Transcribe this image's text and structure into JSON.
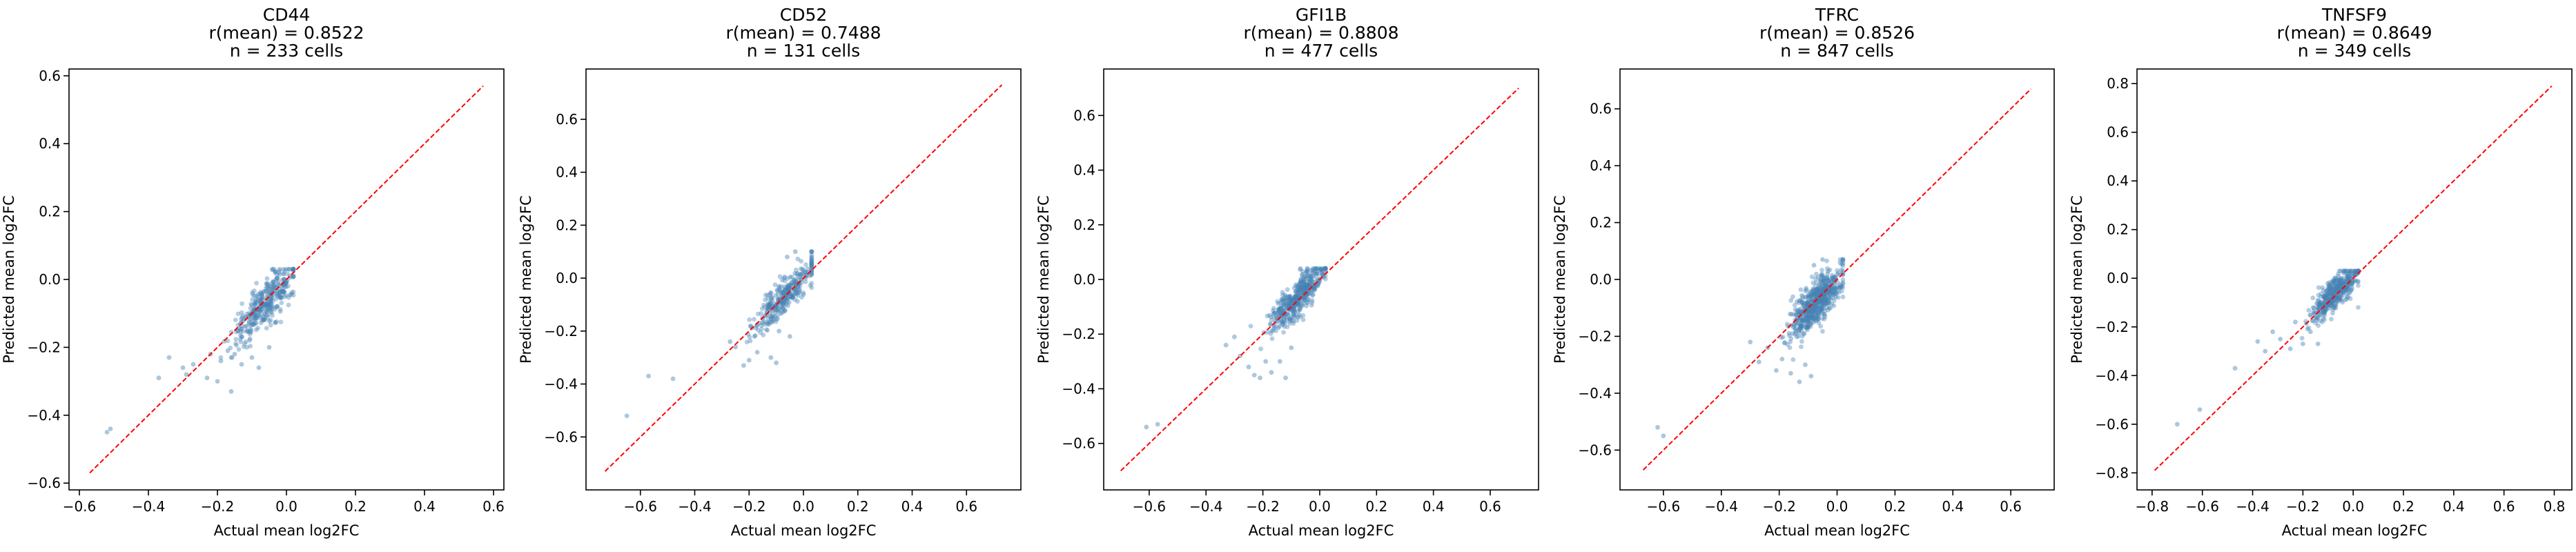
{
  "chart_data": [
    {
      "type": "scatter",
      "title_lines": [
        "CD44",
        "r(mean) = 0.8522",
        "n = 233 cells"
      ],
      "xlabel": "Actual mean log2FC",
      "ylabel": "Predicted mean log2FC",
      "xlim": [
        -0.63,
        0.63
      ],
      "ylim": [
        -0.62,
        0.62
      ],
      "xticks": [
        -0.6,
        -0.4,
        -0.2,
        0.0,
        0.2,
        0.4,
        0.6
      ],
      "xtick_labels": [
        "−0.6",
        "−0.4",
        "−0.2",
        "0.0",
        "0.2",
        "0.4",
        "0.6"
      ],
      "yticks": [
        -0.6,
        -0.4,
        -0.2,
        0.0,
        0.2,
        0.4,
        0.6
      ],
      "ytick_labels": [
        "−0.6",
        "−0.4",
        "−0.2",
        "0.0",
        "0.2",
        "0.4",
        "0.6"
      ],
      "diagonal": [
        -0.57,
        0.57
      ],
      "cloud": {
        "center": [
          -0.06,
          -0.07
        ],
        "spread": [
          0.05,
          0.045
        ],
        "xmin": -0.25,
        "xmax": 0.02,
        "ymin": -0.23,
        "ymax": 0.03
      },
      "outliers": [
        [
          -0.52,
          -0.45
        ],
        [
          -0.51,
          -0.44
        ],
        [
          -0.37,
          -0.29
        ],
        [
          -0.34,
          -0.23
        ],
        [
          -0.3,
          -0.26
        ],
        [
          -0.29,
          -0.28
        ],
        [
          -0.27,
          -0.25
        ],
        [
          -0.23,
          -0.29
        ],
        [
          -0.22,
          -0.22
        ],
        [
          -0.2,
          -0.3
        ],
        [
          -0.19,
          -0.24
        ],
        [
          -0.17,
          -0.21
        ],
        [
          -0.16,
          -0.33
        ],
        [
          -0.15,
          -0.22
        ],
        [
          -0.13,
          -0.25
        ],
        [
          -0.1,
          -0.23
        ],
        [
          -0.08,
          -0.26
        ],
        [
          -0.05,
          -0.2
        ]
      ]
    },
    {
      "type": "scatter",
      "title_lines": [
        "CD52",
        "r(mean) = 0.7488",
        "n = 131 cells"
      ],
      "xlabel": "Actual mean log2FC",
      "ylabel": "Predicted mean log2FC",
      "xlim": [
        -0.8,
        0.8
      ],
      "ylim": [
        -0.8,
        0.79
      ],
      "xticks": [
        -0.6,
        -0.4,
        -0.2,
        0.0,
        0.2,
        0.4,
        0.6
      ],
      "xtick_labels": [
        "−0.6",
        "−0.4",
        "−0.2",
        "0.0",
        "0.2",
        "0.4",
        "0.6"
      ],
      "yticks": [
        -0.6,
        -0.4,
        -0.2,
        0.0,
        0.2,
        0.4,
        0.6
      ],
      "ytick_labels": [
        "−0.6",
        "−0.4",
        "−0.2",
        "0.0",
        "0.2",
        "0.4",
        "0.6"
      ],
      "diagonal": [
        -0.73,
        0.73
      ],
      "cloud": {
        "center": [
          -0.06,
          -0.06
        ],
        "spread": [
          0.06,
          0.05
        ],
        "xmin": -0.27,
        "xmax": 0.03,
        "ymin": -0.33,
        "ymax": 0.1
      },
      "outliers": [
        [
          -0.65,
          -0.52
        ],
        [
          -0.57,
          -0.37
        ],
        [
          -0.48,
          -0.38
        ],
        [
          -0.27,
          -0.24
        ],
        [
          -0.25,
          -0.26
        ],
        [
          -0.22,
          -0.33
        ],
        [
          -0.2,
          -0.31
        ],
        [
          -0.18,
          -0.22
        ],
        [
          -0.17,
          -0.28
        ],
        [
          -0.12,
          -0.3
        ],
        [
          -0.1,
          -0.32
        ],
        [
          -0.09,
          -0.2
        ],
        [
          -0.05,
          -0.22
        ],
        [
          -0.03,
          0.1
        ],
        [
          -0.06,
          0.08
        ]
      ]
    },
    {
      "type": "scatter",
      "title_lines": [
        "GFI1B",
        "r(mean) = 0.8808",
        "n = 477 cells"
      ],
      "xlabel": "Actual mean log2FC",
      "ylabel": "Predicted mean log2FC",
      "xlim": [
        -0.76,
        0.77
      ],
      "ylim": [
        -0.77,
        0.77
      ],
      "xticks": [
        -0.6,
        -0.4,
        -0.2,
        0.0,
        0.2,
        0.4,
        0.6
      ],
      "xtick_labels": [
        "−0.6",
        "−0.4",
        "−0.2",
        "0.0",
        "0.2",
        "0.4",
        "0.6"
      ],
      "yticks": [
        -0.6,
        -0.4,
        -0.2,
        0.0,
        0.2,
        0.4,
        0.6
      ],
      "ytick_labels": [
        "−0.6",
        "−0.4",
        "−0.2",
        "0.0",
        "0.2",
        "0.4",
        "0.6"
      ],
      "diagonal": [
        -0.7,
        0.7
      ],
      "cloud": {
        "center": [
          -0.08,
          -0.07
        ],
        "spread": [
          0.05,
          0.05
        ],
        "xmin": -0.25,
        "xmax": 0.02,
        "ymin": -0.28,
        "ymax": 0.04
      },
      "outliers": [
        [
          -0.61,
          -0.54
        ],
        [
          -0.57,
          -0.53
        ],
        [
          -0.33,
          -0.24
        ],
        [
          -0.3,
          -0.21
        ],
        [
          -0.28,
          -0.28
        ],
        [
          -0.25,
          -0.32
        ],
        [
          -0.23,
          -0.35
        ],
        [
          -0.21,
          -0.36
        ],
        [
          -0.19,
          -0.3
        ],
        [
          -0.17,
          -0.34
        ],
        [
          -0.14,
          -0.3
        ],
        [
          -0.12,
          -0.36
        ],
        [
          -0.1,
          -0.25
        ]
      ]
    },
    {
      "type": "scatter",
      "title_lines": [
        "TFRC",
        "r(mean) = 0.8526",
        "n = 847 cells"
      ],
      "xlabel": "Actual mean log2FC",
      "ylabel": "Predicted mean log2FC",
      "xlim": [
        -0.75,
        0.75
      ],
      "ylim": [
        -0.74,
        0.74
      ],
      "xticks": [
        -0.6,
        -0.4,
        -0.2,
        0.0,
        0.2,
        0.4,
        0.6
      ],
      "xtick_labels": [
        "−0.6",
        "−0.4",
        "−0.2",
        "0.0",
        "0.2",
        "0.4",
        "0.6"
      ],
      "yticks": [
        -0.6,
        -0.4,
        -0.2,
        0.0,
        0.2,
        0.4,
        0.6
      ],
      "ytick_labels": [
        "−0.6",
        "−0.4",
        "−0.2",
        "0.0",
        "0.2",
        "0.4",
        "0.6"
      ],
      "diagonal": [
        -0.67,
        0.67
      ],
      "cloud": {
        "center": [
          -0.07,
          -0.08
        ],
        "spread": [
          0.045,
          0.055
        ],
        "xmin": -0.24,
        "xmax": 0.02,
        "ymin": -0.32,
        "ymax": 0.07
      },
      "outliers": [
        [
          -0.62,
          -0.52
        ],
        [
          -0.6,
          -0.55
        ],
        [
          -0.3,
          -0.22
        ],
        [
          -0.27,
          -0.29
        ],
        [
          -0.24,
          -0.24
        ],
        [
          -0.21,
          -0.32
        ],
        [
          -0.19,
          -0.28
        ],
        [
          -0.16,
          -0.33
        ],
        [
          -0.13,
          -0.36
        ],
        [
          -0.11,
          -0.3
        ],
        [
          -0.09,
          -0.34
        ],
        [
          -0.05,
          0.07
        ],
        [
          -0.08,
          0.05
        ]
      ]
    },
    {
      "type": "scatter",
      "title_lines": [
        "TNFSF9",
        "r(mean) = 0.8649",
        "n = 349 cells"
      ],
      "xlabel": "Actual mean log2FC",
      "ylabel": "Predicted mean log2FC",
      "xlim": [
        -0.86,
        0.87
      ],
      "ylim": [
        -0.87,
        0.86
      ],
      "xticks": [
        -0.8,
        -0.6,
        -0.4,
        -0.2,
        0.0,
        0.2,
        0.4,
        0.6,
        0.8
      ],
      "xtick_labels": [
        "−0.8",
        "−0.6",
        "−0.4",
        "−0.2",
        "0.0",
        "0.2",
        "0.4",
        "0.6",
        "0.8"
      ],
      "yticks": [
        -0.8,
        -0.6,
        -0.4,
        -0.2,
        0.0,
        0.2,
        0.4,
        0.6,
        0.8
      ],
      "ytick_labels": [
        "−0.8",
        "−0.6",
        "−0.4",
        "−0.2",
        "0.0",
        "0.2",
        "0.4",
        "0.6",
        "0.8"
      ],
      "diagonal": [
        -0.79,
        0.79
      ],
      "cloud": {
        "center": [
          -0.07,
          -0.06
        ],
        "spread": [
          0.05,
          0.05
        ],
        "xmin": -0.28,
        "xmax": 0.02,
        "ymin": -0.28,
        "ymax": 0.03
      },
      "outliers": [
        [
          -0.7,
          -0.6
        ],
        [
          -0.61,
          -0.54
        ],
        [
          -0.47,
          -0.37
        ],
        [
          -0.38,
          -0.26
        ],
        [
          -0.35,
          -0.3
        ],
        [
          -0.32,
          -0.22
        ],
        [
          -0.29,
          -0.25
        ],
        [
          -0.25,
          -0.29
        ],
        [
          -0.23,
          -0.18
        ],
        [
          -0.2,
          -0.27
        ],
        [
          -0.17,
          -0.22
        ],
        [
          -0.14,
          -0.27
        ]
      ]
    }
  ]
}
